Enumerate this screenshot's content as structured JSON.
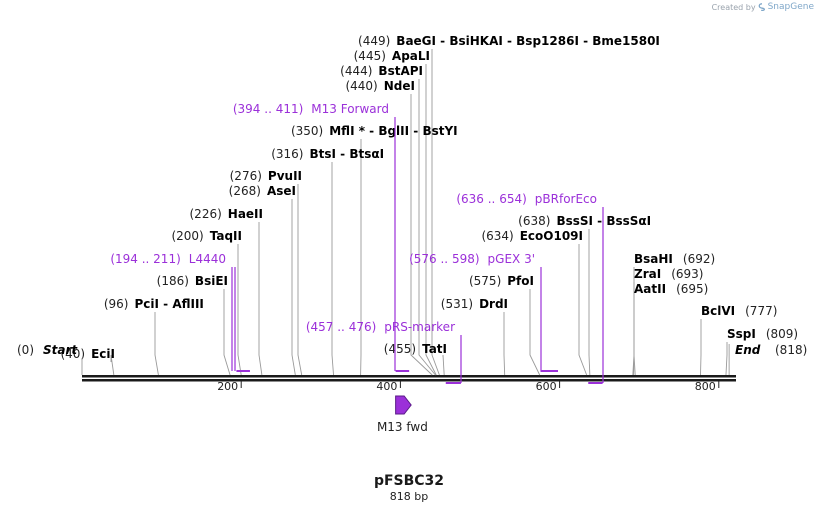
{
  "watermark": {
    "created_by": "Created by",
    "brand": "SnapGene"
  },
  "plasmid": {
    "name": "pFSBC32",
    "length_label": "818 bp",
    "length": 818
  },
  "scale": {
    "ticks": [
      200,
      400,
      600,
      800
    ]
  },
  "ends": [
    {
      "pos": "(0)",
      "label": "Start",
      "bp": 0,
      "side": "left"
    },
    {
      "pos": "(818)",
      "label": "End",
      "bp": 818,
      "side": "right"
    }
  ],
  "sites": [
    {
      "pos": "(40)",
      "names": [
        "EciI"
      ],
      "bp": 40
    },
    {
      "pos": "(96)",
      "names": [
        "PciI",
        "AflIII"
      ],
      "bp": 96
    },
    {
      "pos": "(186)",
      "names": [
        "BsiEI"
      ],
      "bp": 186
    },
    {
      "pos": "(200)",
      "names": [
        "TaqII"
      ],
      "bp": 200
    },
    {
      "pos": "(226)",
      "names": [
        "HaeII"
      ],
      "bp": 226
    },
    {
      "pos": "(268)",
      "names": [
        "AseI"
      ],
      "bp": 268
    },
    {
      "pos": "(276)",
      "names": [
        "PvuII"
      ],
      "bp": 276
    },
    {
      "pos": "(316)",
      "names": [
        "BtsI",
        "BtsαI"
      ],
      "bp": 316
    },
    {
      "pos": "(350)",
      "names": [
        "MflI *",
        "BglII",
        "BstYI"
      ],
      "bp": 350
    },
    {
      "pos": "(440)",
      "names": [
        "NdeI"
      ],
      "bp": 440
    },
    {
      "pos": "(444)",
      "names": [
        "BstAPI"
      ],
      "bp": 444
    },
    {
      "pos": "(445)",
      "names": [
        "ApaLI"
      ],
      "bp": 445
    },
    {
      "pos": "(449)",
      "names": [
        "BaeGI",
        "BsiHKAI",
        "Bsp1286I",
        "Bme1580I"
      ],
      "bp": 449
    },
    {
      "pos": "(455)",
      "names": [
        "TatI"
      ],
      "bp": 455
    },
    {
      "pos": "(531)",
      "names": [
        "DrdI"
      ],
      "bp": 531
    },
    {
      "pos": "(575)",
      "names": [
        "PfoI"
      ],
      "bp": 575
    },
    {
      "pos": "(634)",
      "names": [
        "EcoO109I"
      ],
      "bp": 634
    },
    {
      "pos": "(638)",
      "names": [
        "BssSI",
        "BssSαI"
      ],
      "bp": 638
    },
    {
      "pos": "(692)",
      "names": [
        "BsaHI"
      ],
      "bp": 692,
      "side": "right"
    },
    {
      "pos": "(693)",
      "names": [
        "ZraI"
      ],
      "bp": 693,
      "side": "right"
    },
    {
      "pos": "(695)",
      "names": [
        "AatII"
      ],
      "bp": 695,
      "side": "right"
    },
    {
      "pos": "(777)",
      "names": [
        "BclVI"
      ],
      "bp": 777,
      "side": "right"
    },
    {
      "pos": "(809)",
      "names": [
        "SspI"
      ],
      "bp": 809,
      "side": "right"
    }
  ],
  "primers": [
    {
      "range": "(194 .. 211)",
      "name": "L4440",
      "start": 194,
      "end": 211,
      "strand": "top"
    },
    {
      "range": "(394 .. 411)",
      "name": "M13 Forward",
      "start": 394,
      "end": 411,
      "strand": "top"
    },
    {
      "range": "(457 .. 476)",
      "name": "pRS-marker",
      "start": 457,
      "end": 476,
      "strand": "bottom"
    },
    {
      "range": "(576 .. 598)",
      "name": "pGEX 3'",
      "start": 576,
      "end": 598,
      "strand": "top"
    },
    {
      "range": "(636 .. 654)",
      "name": "pBRforEco",
      "start": 636,
      "end": 654,
      "strand": "bottom"
    }
  ],
  "features": [
    {
      "name": "M13 fwd",
      "start": 394,
      "end": 411,
      "direction": "forward",
      "color": "#9b30d9"
    }
  ],
  "colors": {
    "primer": "#9b30d9",
    "feature": "#9b30d9",
    "backbone": "#1a1a1a"
  }
}
